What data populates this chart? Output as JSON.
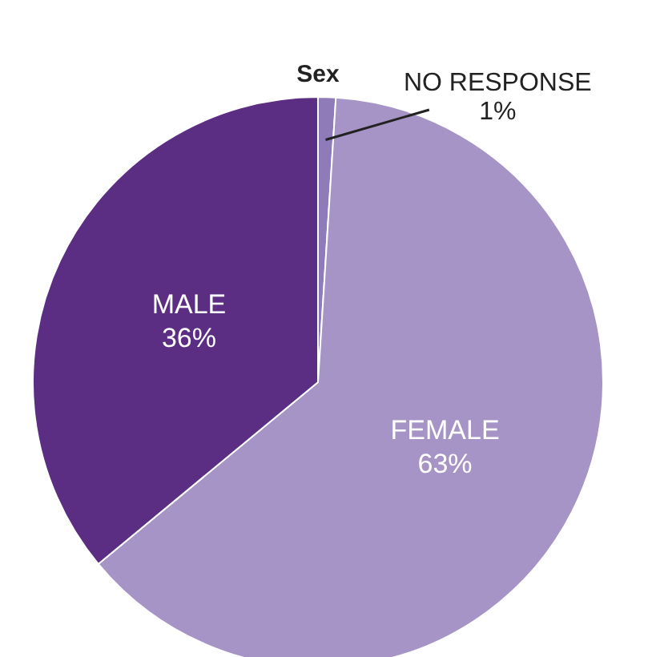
{
  "chart_data": {
    "type": "pie",
    "title": "Sex",
    "categories": [
      "NO RESPONSE",
      "FEMALE",
      "MALE"
    ],
    "values": [
      1,
      63,
      36
    ],
    "colors": [
      "#8f7bb8",
      "#a794c6",
      "#5b2d83"
    ],
    "value_labels": [
      "1%",
      "63%",
      "36%"
    ]
  }
}
